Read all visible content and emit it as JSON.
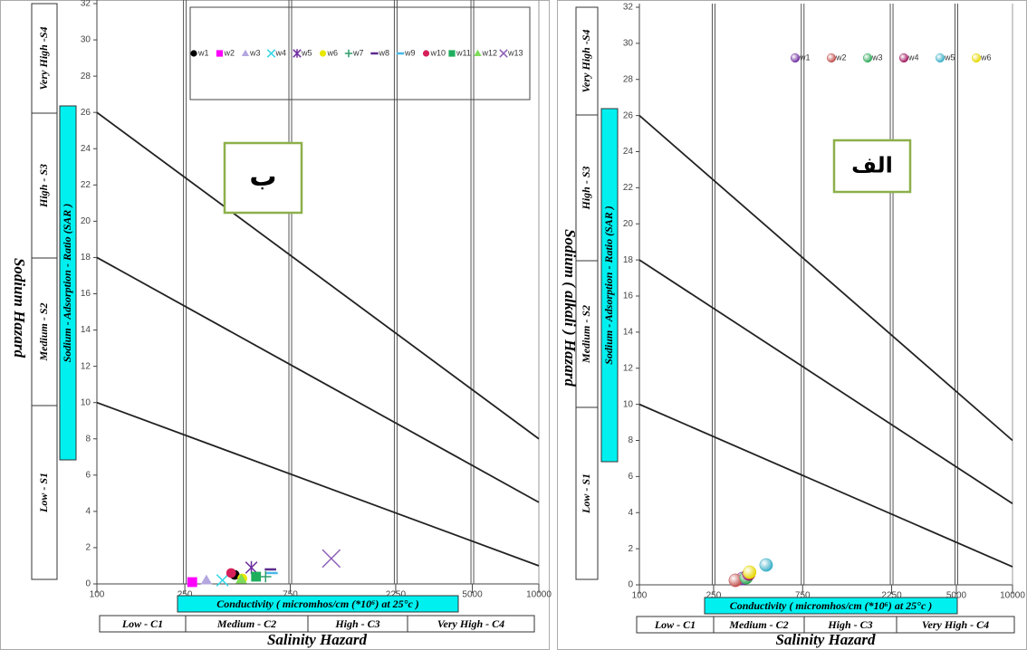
{
  "chart_data": [
    {
      "type": "scatter",
      "annotation": "ب",
      "y_label": "Sodium Hazard",
      "y_sublabel": "Sodium - Adsorption - Ratio (SAR )",
      "x_sublabel": "Conductivity ( micromhos/cm (*10⁶) at 25°c )",
      "x_label": "Salinity Hazard",
      "y_classes": [
        "Very High -S4",
        "High - S3",
        "Medium - S2",
        "Low - S1"
      ],
      "x_classes": [
        "Low - C1",
        "Medium - C2",
        "High - C3",
        "Very High - C4"
      ],
      "x_scale": "log",
      "xlim": [
        100,
        10000
      ],
      "ylim": [
        0,
        32
      ],
      "xticks": [
        100,
        250,
        750,
        2250,
        5000,
        10000
      ],
      "yticks": [
        0,
        2,
        4,
        6,
        8,
        10,
        12,
        14,
        16,
        18,
        20,
        22,
        24,
        26,
        28,
        30,
        32
      ],
      "class_lines_x": [
        250,
        750,
        2250,
        5000
      ],
      "class_lines": [
        {
          "x": [
            100,
            10000
          ],
          "y": [
            26,
            8
          ]
        },
        {
          "x": [
            100,
            10000
          ],
          "y": [
            18,
            4.5
          ]
        },
        {
          "x": [
            100,
            10000
          ],
          "y": [
            10,
            1
          ]
        }
      ],
      "legend_box": true,
      "series": [
        {
          "name": "w1",
          "color": "#000000",
          "marker": "circle",
          "x": [
            420
          ],
          "values": [
            0.5
          ]
        },
        {
          "name": "w2",
          "color": "#ff00ff",
          "marker": "square",
          "x": [
            270
          ],
          "values": [
            0.1
          ]
        },
        {
          "name": "w3",
          "color": "#b4a7e0",
          "marker": "triangle",
          "x": [
            313
          ],
          "values": [
            0.2
          ]
        },
        {
          "name": "w4",
          "color": "#33d6e6",
          "marker": "x",
          "x": [
            370
          ],
          "values": [
            0.2
          ]
        },
        {
          "name": "w5",
          "color": "#7030a0",
          "marker": "star",
          "x": [
            500
          ],
          "values": [
            0.9
          ]
        },
        {
          "name": "w6",
          "color": "#e8e800",
          "marker": "circle",
          "x": [
            455
          ],
          "values": [
            0.3
          ]
        },
        {
          "name": "w7",
          "color": "#2e9e6a",
          "marker": "plus",
          "x": [
            580
          ],
          "values": [
            0.4
          ]
        },
        {
          "name": "w8",
          "color": "#5b2c8e",
          "marker": "dash",
          "x": [
            610
          ],
          "values": [
            0.8
          ]
        },
        {
          "name": "w9",
          "color": "#49b8e8",
          "marker": "dash",
          "x": [
            620
          ],
          "values": [
            0.6
          ]
        },
        {
          "name": "w10",
          "color": "#d6205a",
          "marker": "circle",
          "x": [
            405
          ],
          "values": [
            0.6
          ]
        },
        {
          "name": "w11",
          "color": "#1fae5c",
          "marker": "square",
          "x": [
            525
          ],
          "values": [
            0.4
          ]
        },
        {
          "name": "w12",
          "color": "#7fdc5a",
          "marker": "triangle",
          "x": [
            450
          ],
          "values": [
            0.25
          ]
        },
        {
          "name": "w13",
          "color": "#8e5fb8",
          "marker": "x",
          "x": [
            1150
          ],
          "values": [
            1.4
          ]
        }
      ]
    },
    {
      "type": "scatter",
      "annotation": "الف",
      "y_label": "Sodium ( alkali ) Hazard",
      "y_sublabel": "Sodium - Adsorption - Ratio (SAR )",
      "x_sublabel": "Conductivity ( micromhos/cm (*10⁶) at 25°c )",
      "x_label": "Salinity  Hazard",
      "y_classes": [
        "Very High -S4",
        "High - S3",
        "Medium - S2",
        "Low - S1"
      ],
      "x_classes": [
        "Low - C1",
        "Medium - C2",
        "High - C3",
        "Very High - C4"
      ],
      "x_scale": "log",
      "xlim": [
        100,
        10000
      ],
      "ylim": [
        0,
        32
      ],
      "xticks": [
        100,
        250,
        750,
        2250,
        5000,
        10000
      ],
      "yticks": [
        0,
        2,
        4,
        6,
        8,
        10,
        12,
        14,
        16,
        18,
        20,
        22,
        24,
        26,
        28,
        30,
        32
      ],
      "class_lines_x": [
        250,
        750,
        2250,
        5000
      ],
      "class_lines": [
        {
          "x": [
            100,
            10000
          ],
          "y": [
            26,
            8
          ]
        },
        {
          "x": [
            100,
            10000
          ],
          "y": [
            18,
            4.5
          ]
        },
        {
          "x": [
            100,
            10000
          ],
          "y": [
            10,
            1
          ]
        }
      ],
      "legend_box": false,
      "series": [
        {
          "name": "w1",
          "color": "#7030a0",
          "marker": "sphere",
          "x": [
            357
          ],
          "values": [
            0.35
          ]
        },
        {
          "name": "w2",
          "color": "#c0504d",
          "marker": "sphere",
          "x": [
            327
          ],
          "values": [
            0.25
          ]
        },
        {
          "name": "w3",
          "color": "#2eaa5a",
          "marker": "sphere",
          "x": [
            374
          ],
          "values": [
            0.4
          ]
        },
        {
          "name": "w4",
          "color": "#a01860",
          "marker": "sphere",
          "x": [
            386
          ],
          "values": [
            0.6
          ]
        },
        {
          "name": "w5",
          "color": "#3cb0c8",
          "marker": "sphere",
          "x": [
            478
          ],
          "values": [
            1.1
          ]
        },
        {
          "name": "w6",
          "color": "#e6d800",
          "marker": "sphere",
          "x": [
            390
          ],
          "values": [
            0.7
          ]
        }
      ]
    }
  ]
}
